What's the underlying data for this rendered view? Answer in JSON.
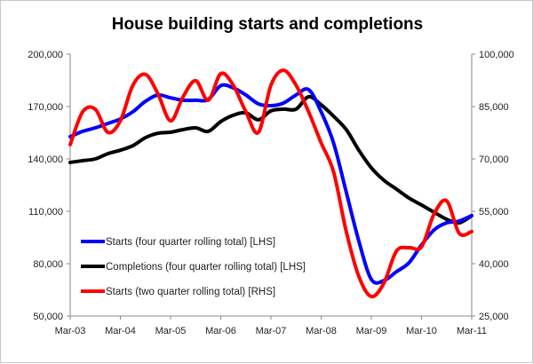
{
  "chart_data": {
    "type": "line",
    "title": "House building starts and completions",
    "x_tick_labels": [
      "Mar-03",
      "Mar-04",
      "Mar-05",
      "Mar-06",
      "Mar-07",
      "Mar-08",
      "Mar-09",
      "Mar-10",
      "Mar-11"
    ],
    "x_frequency": "quarterly",
    "x_range": [
      "Mar-03",
      "Mar-11"
    ],
    "y_left": {
      "min": 50000,
      "max": 200000,
      "ticks": [
        "50,000",
        "80,000",
        "110,000",
        "140,000",
        "170,000",
        "200,000"
      ]
    },
    "y_right": {
      "min": 25000,
      "max": 100000,
      "ticks": [
        "25,000",
        "40,000",
        "55,000",
        "70,000",
        "85,000",
        "100,000"
      ]
    },
    "grid": false,
    "legend_position": "bottom-left",
    "series": [
      {
        "name": "Starts (four quarter rolling total) [LHS]",
        "axis": "left",
        "color": "#0000ff",
        "values": [
          152700,
          155800,
          157800,
          160300,
          162900,
          167000,
          173000,
          176600,
          175000,
          173600,
          173600,
          174000,
          182000,
          180700,
          176600,
          171500,
          170500,
          172000,
          176600,
          179700,
          167000,
          149000,
          121000,
          93000,
          71000,
          70300,
          75400,
          80500,
          90700,
          99300,
          103400,
          104400,
          107500
        ]
      },
      {
        "name": "Completions (four quarter rolling total) [LHS]",
        "axis": "left",
        "color": "#000000",
        "values": [
          138000,
          139000,
          140000,
          143000,
          145000,
          147600,
          152200,
          154700,
          155300,
          156800,
          157800,
          155800,
          161400,
          165000,
          166400,
          162400,
          167500,
          168500,
          168500,
          175600,
          171000,
          164400,
          156800,
          145000,
          134900,
          127800,
          122700,
          117600,
          113600,
          109500,
          105400,
          103400,
          107500
        ]
      },
      {
        "name": "Starts (two quarter rolling total) [RHS]",
        "axis": "right",
        "color": "#ff0000",
        "values": [
          74100,
          83500,
          84200,
          77600,
          80900,
          91100,
          94200,
          88600,
          80900,
          87800,
          92400,
          86800,
          94400,
          91100,
          83500,
          77600,
          91100,
          95400,
          91100,
          83500,
          74600,
          66200,
          49200,
          36400,
          30600,
          34400,
          43600,
          44600,
          44800,
          54200,
          58000,
          48700,
          49200
        ]
      }
    ]
  }
}
